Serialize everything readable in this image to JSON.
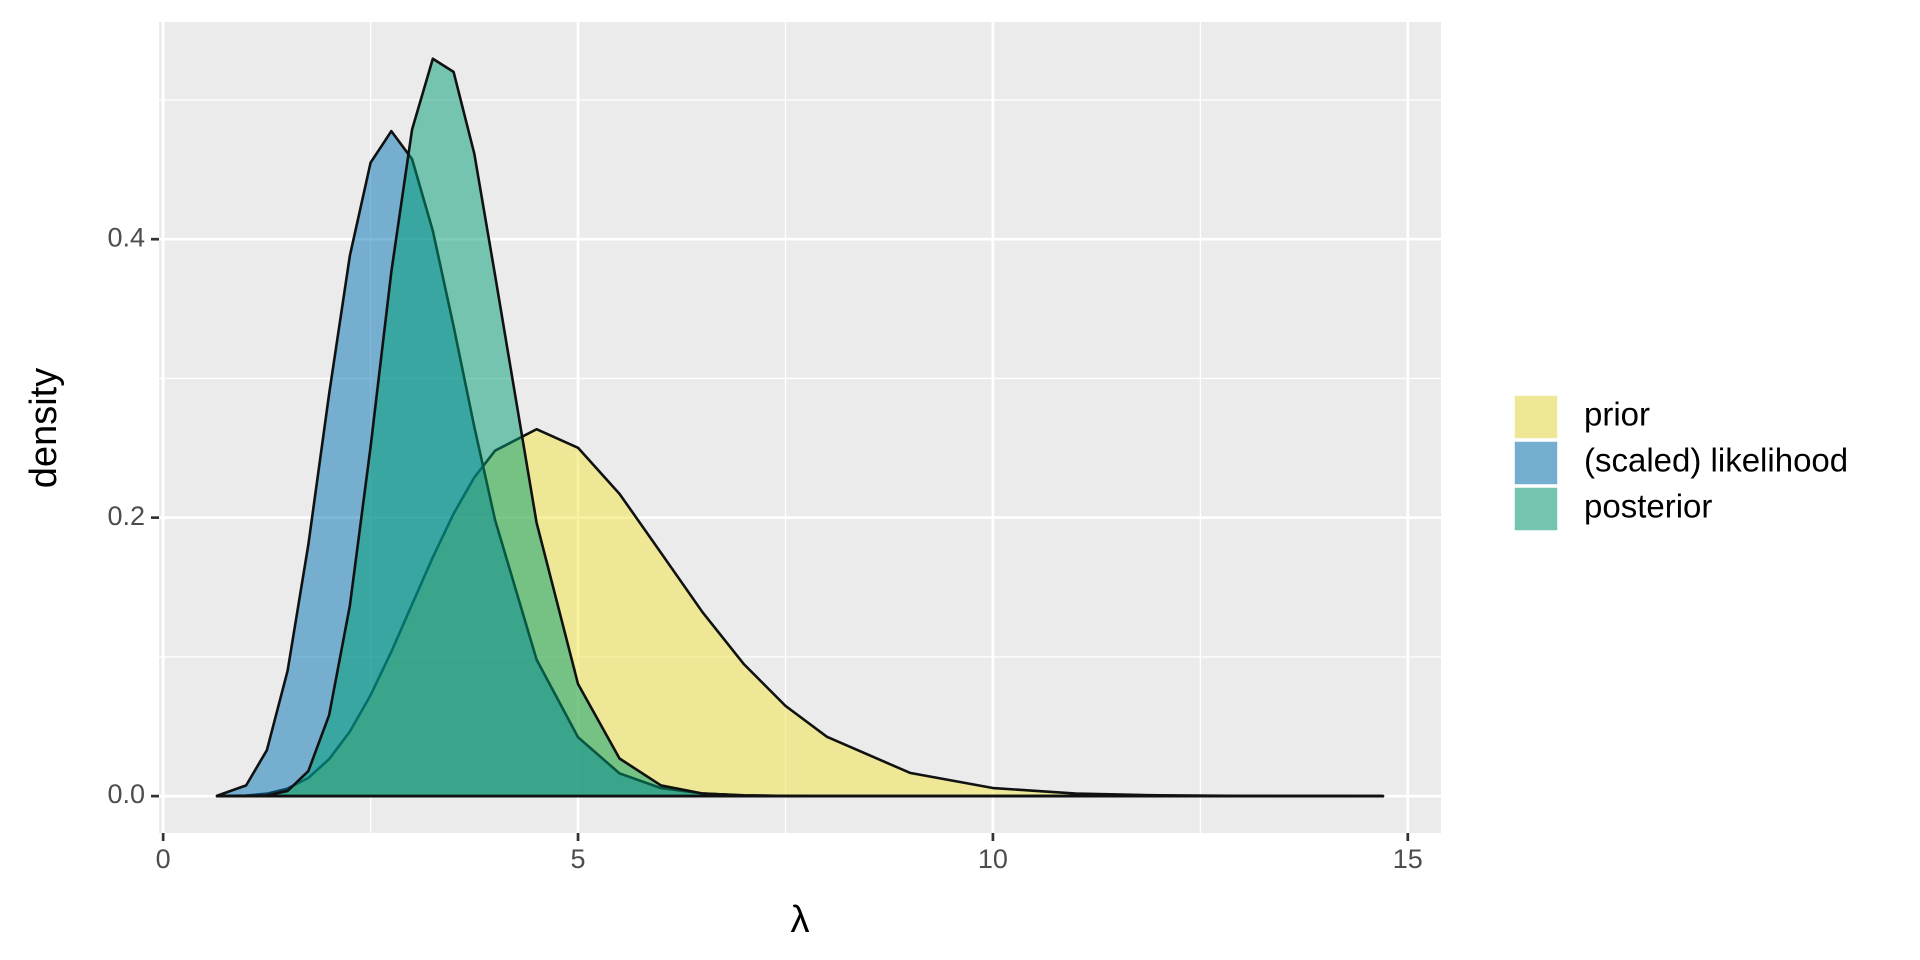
{
  "chart_data": {
    "type": "area",
    "x_label": "λ",
    "y_label": "density",
    "x": [
      0.65,
      1,
      1.25,
      1.5,
      1.75,
      2,
      2.25,
      2.5,
      2.75,
      3,
      3.25,
      3.5,
      3.75,
      4,
      4.5,
      5,
      5.5,
      6,
      6.5,
      7,
      7.5,
      8,
      9,
      10,
      11,
      12,
      13,
      14.7
    ],
    "series": [
      {
        "name": "prior",
        "color": "#F0E442",
        "values": [
          2e-05,
          0.00038,
          0.00173,
          0.0054,
          0.0131,
          0.0265,
          0.0463,
          0.0725,
          0.1037,
          0.1377,
          0.1716,
          0.2028,
          0.2289,
          0.2481,
          0.2635,
          0.2502,
          0.2171,
          0.1747,
          0.1321,
          0.0947,
          0.0648,
          0.0426,
          0.0167,
          0.0058,
          0.00186,
          0.00055,
          0.00015,
          2e-05
        ]
      },
      {
        "name": "(scaled) likelihood",
        "color": "#0072B2",
        "values": [
          0.00027,
          0.0077,
          0.033,
          0.0901,
          0.1807,
          0.2888,
          0.3881,
          0.455,
          0.4776,
          0.4575,
          0.406,
          0.3375,
          0.2652,
          0.1984,
          0.0981,
          0.0423,
          0.0163,
          0.00576,
          0.00188,
          0.00057,
          0.00017,
          5e-05,
          0,
          0,
          0,
          0,
          0,
          0
        ]
      },
      {
        "name": "posterior",
        "color": "#009E73",
        "values": [
          0,
          2e-05,
          0.00043,
          0.0037,
          0.018,
          0.0581,
          0.1367,
          0.2509,
          0.3766,
          0.4788,
          0.5296,
          0.5202,
          0.4614,
          0.3742,
          0.1965,
          0.0805,
          0.027,
          0.00765,
          0.00189,
          0.00041,
          8e-05,
          1e-05,
          0,
          0,
          0,
          0,
          0,
          0
        ]
      }
    ],
    "fill_opacity": 0.5,
    "xlim": [
      -0.05,
      15.4
    ],
    "ylim": [
      -0.0265,
      0.556
    ],
    "xticks": [
      0,
      5,
      10,
      15
    ],
    "yticks": [
      {
        "value": 0,
        "label": "0.0"
      },
      {
        "value": 0.2,
        "label": "0.2"
      },
      {
        "value": 0.4,
        "label": "0.4"
      }
    ],
    "xminor": [
      2.5,
      7.5,
      12.5
    ],
    "yminor": [
      0.1,
      0.3,
      0.5
    ],
    "grid": true,
    "legend": "right"
  }
}
